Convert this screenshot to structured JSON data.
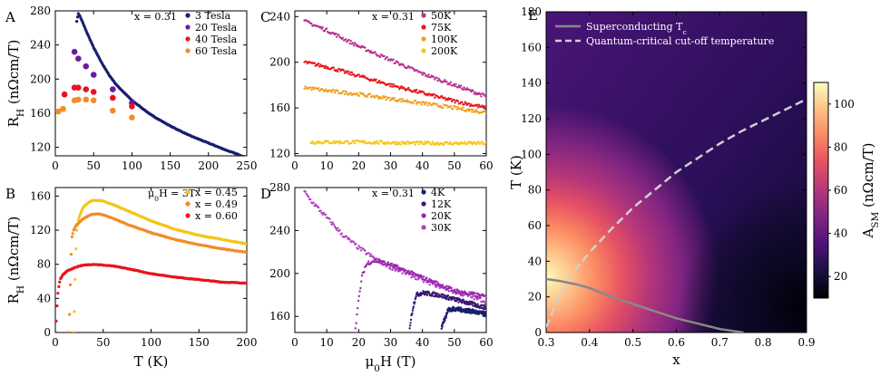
{
  "colors": {
    "navy": "#1a1f6e",
    "purple": "#6a1b9a",
    "red": "#e8141c",
    "orange": "#f28c28",
    "yellow": "#f5c518",
    "magenta": "#b8328f",
    "gold": "#f0a020",
    "deep_purple": "#3a1a6e",
    "violet": "#9b27b0",
    "lavender": "#b040c0",
    "tc_line": "#888888",
    "qc_line": "#d0d0d0"
  },
  "chart_data": [
    {
      "id": "A",
      "type": "scatter",
      "panel_label": "A",
      "annotation": "x = 0.31",
      "xlim": [
        0,
        250
      ],
      "ylim": [
        110,
        280
      ],
      "xticks": [
        "0",
        "50",
        "100",
        "150",
        "200",
        "250"
      ],
      "yticks": [
        "120",
        "160",
        "200",
        "240",
        "280"
      ],
      "ylabel": "RH (nΩcm/T)",
      "ylabel_main": "R",
      "ylabel_sub": "H",
      "ylabel_unit": " (nΩcm/T)",
      "legend": [
        {
          "name": "3 Tesla",
          "color": "#1a1f6e"
        },
        {
          "name": "20 Tesla",
          "color": "#6a1b9a"
        },
        {
          "name": "40 Tesla",
          "color": "#e8141c"
        },
        {
          "name": "60 Tesla",
          "color": "#f28c28"
        }
      ],
      "series": [
        {
          "name": "3 Tesla",
          "style": "dense",
          "x": [
            28,
            30,
            32,
            35,
            40,
            45,
            50,
            60,
            70,
            80,
            100,
            125,
            150,
            175,
            200,
            225,
            250
          ],
          "y": [
            268,
            277,
            274,
            268,
            257,
            247,
            237,
            220,
            205,
            193,
            175,
            158,
            145,
            134,
            125,
            116,
            108
          ]
        },
        {
          "name": "20 Tesla",
          "style": "dots",
          "x": [
            25,
            30,
            40,
            50,
            75,
            100
          ],
          "y": [
            232,
            224,
            215,
            205,
            188,
            172
          ]
        },
        {
          "name": "40 Tesla",
          "style": "dots",
          "x": [
            12,
            25,
            30,
            40,
            50,
            75,
            100
          ],
          "y": [
            182,
            190,
            190,
            188,
            185,
            178,
            168
          ]
        },
        {
          "name": "60 Tesla",
          "style": "dots",
          "x": [
            4,
            10,
            25,
            30,
            40,
            50,
            75,
            100
          ],
          "y": [
            162,
            165,
            175,
            176,
            176,
            175,
            163,
            155
          ]
        }
      ]
    },
    {
      "id": "B",
      "type": "scatter",
      "panel_label": "B",
      "xlim": [
        0,
        200
      ],
      "ylim": [
        0,
        170
      ],
      "xticks": [
        "0",
        "50",
        "100",
        "150",
        "200"
      ],
      "yticks": [
        "0",
        "40",
        "80",
        "120",
        "160"
      ],
      "xlabel": "T (K)",
      "ylabel": "RH (nΩcm/T)",
      "ylabel_main": "R",
      "ylabel_sub": "H",
      "ylabel_unit": " (nΩcm/T)",
      "legend_title": "μ0H = 3T",
      "legend_title_main": "μ",
      "legend_title_sub": "0",
      "legend_title_rest": "H = 3T",
      "legend": [
        {
          "name": "x = 0.45",
          "color": "#f5c518"
        },
        {
          "name": "x = 0.49",
          "color": "#f28c28"
        },
        {
          "name": "x = 0.60",
          "color": "#e8141c"
        }
      ],
      "series": [
        {
          "name": "x = 0.45",
          "style": "dense",
          "x": [
            19,
            20,
            21,
            22,
            24,
            27,
            30,
            35,
            40,
            45,
            50,
            60,
            75,
            100,
            125,
            150,
            175,
            200
          ],
          "y": [
            0,
            30,
            80,
            118,
            132,
            142,
            148,
            153,
            155,
            155,
            154,
            150,
            143,
            131,
            121,
            114,
            109,
            104
          ]
        },
        {
          "name": "x = 0.49",
          "style": "dense",
          "x": [
            14,
            15,
            16,
            17,
            19,
            22,
            25,
            30,
            35,
            40,
            45,
            50,
            60,
            75,
            100,
            125,
            150,
            175,
            200
          ],
          "y": [
            0,
            25,
            70,
            110,
            120,
            126,
            129,
            134,
            137,
            139,
            139,
            138,
            134,
            127,
            117,
            109,
            103,
            98,
            94
          ]
        },
        {
          "name": "x = 0.60",
          "style": "dense",
          "x": [
            0,
            1,
            2,
            3,
            5,
            8,
            12,
            16,
            20,
            25,
            30,
            40,
            50,
            60,
            75,
            100,
            125,
            150,
            175,
            200
          ],
          "y": [
            0,
            15,
            35,
            50,
            62,
            68,
            72,
            74,
            76,
            78,
            79,
            80,
            79,
            78,
            75,
            69,
            65,
            62,
            59,
            58
          ]
        }
      ]
    },
    {
      "id": "C",
      "type": "scatter",
      "panel_label": "C",
      "annotation": "x = 0.31",
      "xlim": [
        0,
        60
      ],
      "ylim": [
        118,
        245
      ],
      "xticks": [
        "0",
        "10",
        "20",
        "30",
        "40",
        "50",
        "60"
      ],
      "yticks": [
        "120",
        "160",
        "200",
        "240"
      ],
      "legend": [
        {
          "name": "50K",
          "color": "#b8328f"
        },
        {
          "name": "75K",
          "color": "#e8141c"
        },
        {
          "name": "100K",
          "color": "#f0a020"
        },
        {
          "name": "200K",
          "color": "#f5c518"
        }
      ],
      "series": [
        {
          "name": "50K",
          "style": "noisy",
          "x": [
            3,
            10,
            20,
            30,
            40,
            50,
            60
          ],
          "y": [
            236,
            228,
            214,
            202,
            190,
            180,
            170
          ]
        },
        {
          "name": "75K",
          "style": "noisy",
          "x": [
            3,
            10,
            20,
            30,
            40,
            50,
            60
          ],
          "y": [
            200,
            196,
            188,
            180,
            173,
            166,
            160
          ]
        },
        {
          "name": "100K",
          "style": "noisy",
          "x": [
            3,
            10,
            20,
            30,
            40,
            50,
            60
          ],
          "y": [
            178,
            175,
            172,
            168,
            164,
            160,
            156
          ]
        },
        {
          "name": "200K",
          "style": "noisy",
          "x": [
            5,
            20,
            40,
            60
          ],
          "y": [
            130,
            130,
            129,
            129
          ]
        }
      ]
    },
    {
      "id": "D",
      "type": "scatter",
      "panel_label": "D",
      "annotation": "x = 0.31",
      "xlim": [
        0,
        60
      ],
      "ylim": [
        145,
        280
      ],
      "xticks": [
        "0",
        "10",
        "20",
        "30",
        "40",
        "50",
        "60"
      ],
      "yticks": [
        "160",
        "200",
        "240",
        "280"
      ],
      "xlabel": "μ0H (T)",
      "xlabel_main": "μ",
      "xlabel_sub": "0",
      "xlabel_rest": "H (T)",
      "legend": [
        {
          "name": "4K",
          "color": "#1a1f6e"
        },
        {
          "name": "12K",
          "color": "#3a1a6e"
        },
        {
          "name": "20K",
          "color": "#9b27b0"
        },
        {
          "name": "30K",
          "color": "#b040c0"
        }
      ],
      "series": [
        {
          "name": "30K",
          "style": "noisy",
          "x": [
            3,
            5,
            10,
            15,
            20,
            25,
            30,
            40,
            50,
            60
          ],
          "y": [
            276,
            268,
            252,
            236,
            224,
            214,
            206,
            194,
            183,
            174
          ]
        },
        {
          "name": "20K",
          "style": "noisy",
          "x": [
            19,
            20,
            21,
            22,
            23,
            25,
            30,
            40,
            50,
            60
          ],
          "y": [
            150,
            175,
            196,
            206,
            210,
            212,
            208,
            196,
            184,
            178
          ]
        },
        {
          "name": "12K",
          "style": "noisy",
          "x": [
            36,
            37,
            38,
            40,
            45,
            50,
            55,
            60
          ],
          "y": [
            150,
            168,
            180,
            182,
            180,
            176,
            172,
            168
          ]
        },
        {
          "name": "4K",
          "style": "noisy",
          "x": [
            46,
            47,
            48,
            50,
            55,
            60
          ],
          "y": [
            150,
            158,
            166,
            167,
            165,
            162
          ]
        }
      ]
    },
    {
      "id": "E",
      "type": "heatmap",
      "panel_label": "E",
      "xlim": [
        0.3,
        0.9
      ],
      "ylim": [
        0,
        180
      ],
      "xticks": [
        "0.3",
        "0.4",
        "0.5",
        "0.6",
        "0.7",
        "0.8",
        "0.9"
      ],
      "yticks": [
        "0",
        "20",
        "40",
        "60",
        "80",
        "100",
        "120",
        "140",
        "160",
        "180"
      ],
      "xlabel": "x",
      "ylabel": "T (K)",
      "colorbar_label": "ASM (nΩcm/T)",
      "colorbar_main": "A",
      "colorbar_sub": "SM",
      "colorbar_unit": " (nΩcm/T)",
      "colorbar_range": [
        10,
        110
      ],
      "colorbar_ticks": [
        "20",
        "40",
        "60",
        "80",
        "100"
      ],
      "legend": [
        {
          "name": "Superconducting Tc",
          "name_main": "Superconducting T",
          "name_sub": "c",
          "style": "solid",
          "color": "#888888"
        },
        {
          "name": "Quantum-critical cut-off temperature",
          "style": "dashed",
          "color": "#d0d0d0"
        }
      ],
      "lines": [
        {
          "name": "Superconducting Tc",
          "x": [
            0.3,
            0.33,
            0.37,
            0.4,
            0.45,
            0.5,
            0.55,
            0.6,
            0.65,
            0.7,
            0.755
          ],
          "y": [
            30,
            29,
            27,
            25,
            20,
            16,
            12,
            8,
            5,
            2,
            0
          ]
        },
        {
          "name": "Quantum-critical cut-off temperature",
          "x": [
            0.3,
            0.33,
            0.36,
            0.4,
            0.45,
            0.5,
            0.55,
            0.6,
            0.65,
            0.7,
            0.75,
            0.8,
            0.85,
            0.9
          ],
          "y": [
            3,
            20,
            33,
            45,
            58,
            70,
            80,
            90,
            98,
            106,
            113,
            119,
            125,
            131
          ]
        }
      ]
    }
  ]
}
